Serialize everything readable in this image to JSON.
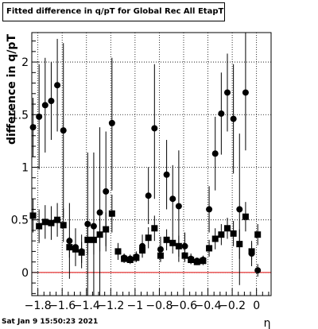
{
  "title": "Fitted difference in q/pT for Global Rec All EtapT",
  "footer": "Sat Jan  9 15:50:23 2021",
  "chart_data": {
    "type": "scatter",
    "xlabel": "η",
    "ylabel": "difference in q/pT",
    "xlim": [
      -1.85,
      0.12
    ],
    "ylim": [
      -0.22,
      2.28
    ],
    "x_ticks": [
      -1.8,
      -1.6,
      -1.4,
      -1.2,
      -1,
      -0.8,
      -0.6,
      -0.4,
      -0.2,
      0
    ],
    "x_tick_labels": [
      "−1.8",
      "−1.6",
      "−1.4",
      "−1.2",
      "−1",
      "−0.8",
      "−0.6",
      "−0.4",
      "−0.2",
      "0"
    ],
    "y_ticks": [
      0,
      0.5,
      1,
      1.5,
      2
    ],
    "y_tick_labels": [
      "0",
      "0.5",
      "1",
      "1.5",
      "2"
    ],
    "grid": true,
    "reference_line": {
      "y": 0,
      "color": "#dd0000"
    },
    "series": [
      {
        "marker": "circle",
        "color": "#000000",
        "points": [
          {
            "x": -1.84,
            "y": 1.38,
            "lo": 1.1,
            "hi": 1.66
          },
          {
            "x": -1.79,
            "y": 1.48,
            "lo": 0.98,
            "hi": 1.98
          },
          {
            "x": -1.74,
            "y": 1.59,
            "lo": 1.14,
            "hi": 2.04
          },
          {
            "x": -1.69,
            "y": 1.63,
            "lo": 1.26,
            "hi": 2.0
          },
          {
            "x": -1.64,
            "y": 1.78,
            "lo": 1.34,
            "hi": 2.22
          },
          {
            "x": -1.59,
            "y": 1.35,
            "lo": 0.52,
            "hi": 2.18
          },
          {
            "x": -1.54,
            "y": 0.3,
            "lo": -0.06,
            "hi": 0.66
          },
          {
            "x": -1.49,
            "y": 0.24,
            "lo": 0.06,
            "hi": 0.42
          },
          {
            "x": -1.44,
            "y": 0.2,
            "lo": 0.04,
            "hi": 0.36
          },
          {
            "x": -1.39,
            "y": 0.46,
            "lo": -0.22,
            "hi": 1.14
          },
          {
            "x": -1.34,
            "y": 0.44,
            "lo": -0.22,
            "hi": 1.14
          },
          {
            "x": -1.29,
            "y": 0.57,
            "lo": -0.22,
            "hi": 1.38
          },
          {
            "x": -1.24,
            "y": 0.77,
            "lo": 0.2,
            "hi": 1.34
          },
          {
            "x": -1.19,
            "y": 1.42,
            "lo": 0.78,
            "hi": 2.04
          },
          {
            "x": -1.14,
            "y": 0.2,
            "lo": 0.12,
            "hi": 0.28
          },
          {
            "x": -1.09,
            "y": 0.14,
            "lo": 0.1,
            "hi": 0.18
          },
          {
            "x": -1.04,
            "y": 0.13,
            "lo": 0.09,
            "hi": 0.17
          },
          {
            "x": -0.99,
            "y": 0.15,
            "lo": 0.1,
            "hi": 0.2
          },
          {
            "x": -0.94,
            "y": 0.25,
            "lo": 0.14,
            "hi": 0.36
          },
          {
            "x": -0.89,
            "y": 0.73,
            "lo": 0.46,
            "hi": 1.0
          },
          {
            "x": -0.84,
            "y": 1.37,
            "lo": 0.7,
            "hi": 1.98
          },
          {
            "x": -0.79,
            "y": 0.22,
            "lo": 0.1,
            "hi": 0.34
          },
          {
            "x": -0.74,
            "y": 0.93,
            "lo": 0.6,
            "hi": 1.26
          },
          {
            "x": -0.69,
            "y": 0.7,
            "lo": 0.38,
            "hi": 1.02
          },
          {
            "x": -0.64,
            "y": 0.63,
            "lo": 0.1,
            "hi": 1.16
          },
          {
            "x": -0.59,
            "y": 0.25,
            "lo": 0.12,
            "hi": 0.38
          },
          {
            "x": -0.54,
            "y": 0.13,
            "lo": 0.08,
            "hi": 0.18
          },
          {
            "x": -0.49,
            "y": 0.11,
            "lo": 0.08,
            "hi": 0.14
          },
          {
            "x": -0.44,
            "y": 0.12,
            "lo": 0.08,
            "hi": 0.16
          },
          {
            "x": -0.39,
            "y": 0.6,
            "lo": 0.38,
            "hi": 0.82
          },
          {
            "x": -0.34,
            "y": 1.13,
            "lo": 0.78,
            "hi": 1.48
          },
          {
            "x": -0.29,
            "y": 1.51,
            "lo": 1.12,
            "hi": 1.9
          },
          {
            "x": -0.24,
            "y": 1.71,
            "lo": 1.34,
            "hi": 2.08
          },
          {
            "x": -0.19,
            "y": 1.46,
            "lo": 0.94,
            "hi": 1.98
          },
          {
            "x": -0.14,
            "y": 0.6,
            "lo": -0.12,
            "hi": 1.32
          },
          {
            "x": -0.09,
            "y": 1.71,
            "lo": 1.16,
            "hi": 2.28
          },
          {
            "x": -0.04,
            "y": 0.18,
            "lo": 0.06,
            "hi": 0.3
          },
          {
            "x": 0.01,
            "y": 0.02,
            "lo": -0.04,
            "hi": 0.08
          }
        ]
      },
      {
        "marker": "square",
        "color": "#000000",
        "points": [
          {
            "x": -1.84,
            "y": 0.54,
            "lo": 0.38,
            "hi": 0.7
          },
          {
            "x": -1.79,
            "y": 0.44,
            "lo": 0.28,
            "hi": 0.6
          },
          {
            "x": -1.74,
            "y": 0.48,
            "lo": 0.32,
            "hi": 0.64
          },
          {
            "x": -1.69,
            "y": 0.47,
            "lo": 0.31,
            "hi": 0.63
          },
          {
            "x": -1.64,
            "y": 0.5,
            "lo": 0.34,
            "hi": 0.66
          },
          {
            "x": -1.59,
            "y": 0.45,
            "lo": 0.29,
            "hi": 0.61
          },
          {
            "x": -1.54,
            "y": 0.24,
            "lo": 0.14,
            "hi": 0.34
          },
          {
            "x": -1.49,
            "y": 0.22,
            "lo": 0.12,
            "hi": 0.32
          },
          {
            "x": -1.44,
            "y": 0.19,
            "lo": 0.09,
            "hi": 0.29
          },
          {
            "x": -1.39,
            "y": 0.31,
            "lo": 0.17,
            "hi": 0.45
          },
          {
            "x": -1.34,
            "y": 0.31,
            "lo": 0.17,
            "hi": 0.45
          },
          {
            "x": -1.29,
            "y": 0.36,
            "lo": 0.2,
            "hi": 0.52
          },
          {
            "x": -1.24,
            "y": 0.41,
            "lo": 0.25,
            "hi": 0.57
          },
          {
            "x": -1.19,
            "y": 0.56,
            "lo": 0.38,
            "hi": 0.74
          },
          {
            "x": -1.14,
            "y": 0.2,
            "lo": 0.14,
            "hi": 0.26
          },
          {
            "x": -1.09,
            "y": 0.13,
            "lo": 0.09,
            "hi": 0.17
          },
          {
            "x": -1.04,
            "y": 0.12,
            "lo": 0.08,
            "hi": 0.16
          },
          {
            "x": -0.99,
            "y": 0.14,
            "lo": 0.1,
            "hi": 0.18
          },
          {
            "x": -0.94,
            "y": 0.21,
            "lo": 0.15,
            "hi": 0.27
          },
          {
            "x": -0.89,
            "y": 0.33,
            "lo": 0.23,
            "hi": 0.43
          },
          {
            "x": -0.84,
            "y": 0.42,
            "lo": 0.3,
            "hi": 0.54
          },
          {
            "x": -0.79,
            "y": 0.16,
            "lo": 0.1,
            "hi": 0.22
          },
          {
            "x": -0.74,
            "y": 0.31,
            "lo": 0.21,
            "hi": 0.41
          },
          {
            "x": -0.69,
            "y": 0.28,
            "lo": 0.18,
            "hi": 0.38
          },
          {
            "x": -0.64,
            "y": 0.25,
            "lo": 0.15,
            "hi": 0.35
          },
          {
            "x": -0.59,
            "y": 0.16,
            "lo": 0.1,
            "hi": 0.22
          },
          {
            "x": -0.54,
            "y": 0.12,
            "lo": 0.08,
            "hi": 0.16
          },
          {
            "x": -0.49,
            "y": 0.1,
            "lo": 0.07,
            "hi": 0.13
          },
          {
            "x": -0.44,
            "y": 0.11,
            "lo": 0.07,
            "hi": 0.15
          },
          {
            "x": -0.39,
            "y": 0.23,
            "lo": 0.15,
            "hi": 0.31
          },
          {
            "x": -0.34,
            "y": 0.32,
            "lo": 0.22,
            "hi": 0.42
          },
          {
            "x": -0.29,
            "y": 0.36,
            "lo": 0.26,
            "hi": 0.46
          },
          {
            "x": -0.24,
            "y": 0.42,
            "lo": 0.32,
            "hi": 0.52
          },
          {
            "x": -0.19,
            "y": 0.37,
            "lo": 0.25,
            "hi": 0.49
          },
          {
            "x": -0.14,
            "y": 0.27,
            "lo": 0.13,
            "hi": 0.41
          },
          {
            "x": -0.09,
            "y": 0.53,
            "lo": 0.39,
            "hi": 0.67
          },
          {
            "x": -0.04,
            "y": 0.2,
            "lo": 0.12,
            "hi": 0.28
          },
          {
            "x": 0.01,
            "y": 0.36,
            "lo": 0.26,
            "hi": 0.46
          }
        ]
      }
    ]
  }
}
